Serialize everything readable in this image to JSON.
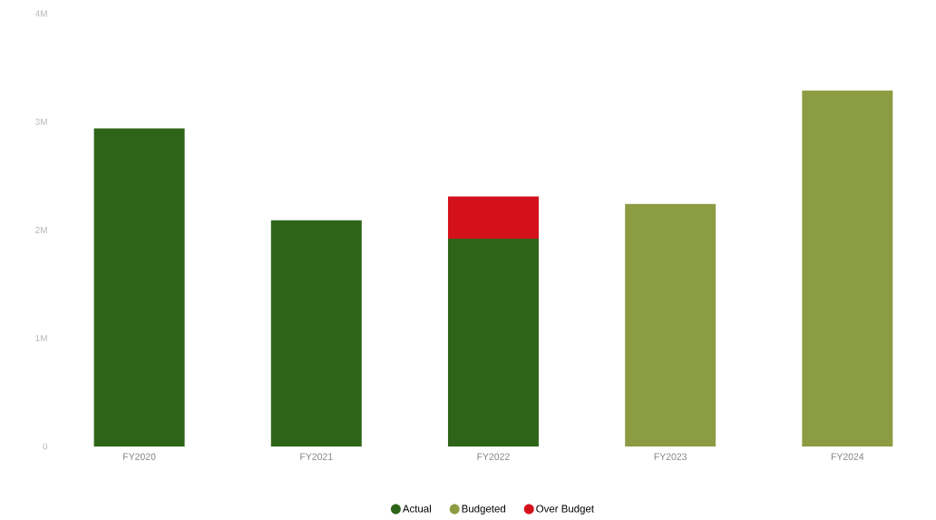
{
  "chart_data": {
    "type": "bar",
    "stacked": true,
    "categories": [
      "FY2020",
      "FY2021",
      "FY2022",
      "FY2023",
      "FY2024"
    ],
    "series": [
      {
        "name": "Actual",
        "color": "#2e6418",
        "values": [
          2.94,
          2.09,
          1.92,
          null,
          null
        ]
      },
      {
        "name": "Budgeted",
        "color": "#8c9c42",
        "values": [
          null,
          null,
          null,
          2.24,
          3.29
        ]
      },
      {
        "name": "Over Budget",
        "color": "#d4101c",
        "values": [
          null,
          null,
          0.39,
          null,
          null
        ]
      }
    ],
    "ylim": [
      0,
      4
    ],
    "yticks": [
      0,
      {
        "value": 1,
        "label": "1M"
      },
      {
        "value": 2,
        "label": "2M"
      },
      {
        "value": 3,
        "label": "3M"
      },
      {
        "value": 4,
        "label": "4M"
      }
    ],
    "legend": "bottom"
  }
}
